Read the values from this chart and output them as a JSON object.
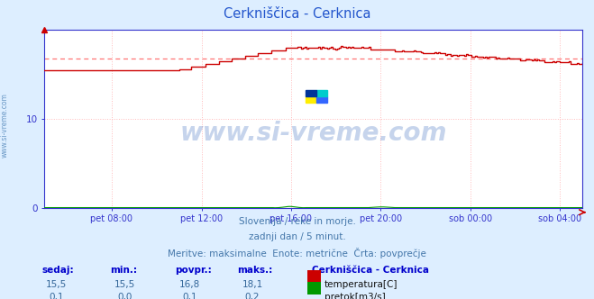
{
  "title": "Cerkniščica - Cerknica",
  "title_color": "#2255cc",
  "bg_color": "#ddeeff",
  "plot_bg_color": "#ffffff",
  "grid_color_v": "#ffbbbb",
  "grid_color_h": "#ffbbbb",
  "xlabel_ticks": [
    "pet 08:00",
    "pet 12:00",
    "pet 16:00",
    "pet 20:00",
    "sob 00:00",
    "sob 04:00"
  ],
  "tick_x_norm": [
    0.125,
    0.292,
    0.458,
    0.625,
    0.792,
    0.958
  ],
  "ylim": [
    0,
    20
  ],
  "yticks": [
    0,
    10
  ],
  "temp_color": "#cc0000",
  "flow_color": "#009900",
  "avg_line_color": "#ff6666",
  "avg_temp": 16.8,
  "watermark": "www.si-vreme.com",
  "watermark_color": "#3366bb",
  "footer_line1": "Slovenija / reke in morje.",
  "footer_line2": "zadnji dan / 5 minut.",
  "footer_line3": "Meritve: maksimalne  Enote: metrične  Črta: povprečje",
  "footer_color": "#4477aa",
  "table_headers": [
    "sedaj:",
    "min.:",
    "povpr.:",
    "maks.:"
  ],
  "table_header_color": "#0000cc",
  "table_values_temp": [
    "15,5",
    "15,5",
    "16,8",
    "18,1"
  ],
  "table_values_flow": [
    "0,1",
    "0,0",
    "0,1",
    "0,2"
  ],
  "table_value_color": "#336699",
  "legend_title": "Cerkniščica - Cerknica",
  "legend_title_color": "#0000cc",
  "legend_temp": "temperatura[C]",
  "legend_flow": "pretok[m3/s]",
  "side_label": "www.si-vreme.com",
  "side_label_color": "#5588bb",
  "axis_color": "#3333cc",
  "tick_color": "#3333cc"
}
